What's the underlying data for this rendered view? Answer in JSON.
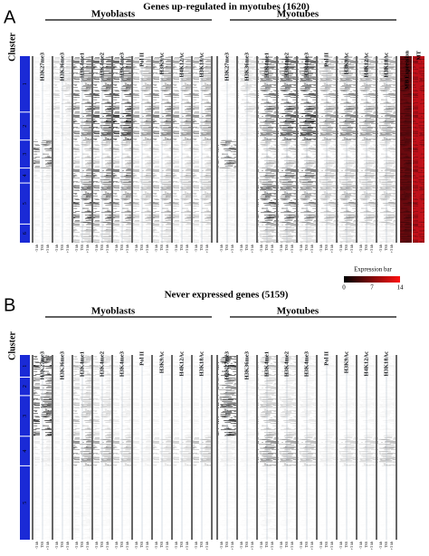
{
  "panels": [
    {
      "label": "A",
      "title": "Genes up-regulated in myotubes (1620)",
      "row_axis_label": "Cluster",
      "groups": [
        {
          "name": "Myoblasts",
          "columns": [
            "H3K27me3",
            "H3K36me3",
            "H3K4me1",
            "H3K4me2",
            "H3K4me3",
            "Pol II",
            "H3K9Ac",
            "H4K12Ac",
            "H3K18Ac"
          ]
        },
        {
          "name": "Myotubes",
          "columns": [
            "H3K27me3",
            "H3K36me3",
            "H3K4me1",
            "H3K4me2",
            "H3K4me3",
            "Pol II",
            "H3K9Ac",
            "H4K12Ac",
            "H3K18Ac"
          ]
        }
      ],
      "extra_columns": [
        "MB Expression",
        "MT"
      ],
      "clusters": [
        "1",
        "2",
        "3",
        "4",
        "5",
        "6"
      ],
      "column_axis": [
        "-3 kb",
        "TSS",
        "+3 kb"
      ]
    },
    {
      "label": "B",
      "title": "Never expressed genes (5159)",
      "row_axis_label": "Cluster",
      "groups": [
        {
          "name": "Myoblasts",
          "columns": [
            "H3K27me3",
            "H3K36me3",
            "H3K4me1",
            "H3K4me2",
            "H3K4me3",
            "Pol II",
            "H3K9Ac",
            "H4K12Ac",
            "H3K18Ac"
          ]
        },
        {
          "name": "Myotubes",
          "columns": [
            "H3K27me3",
            "H3K36me3",
            "H3K4me1",
            "H3K4me2",
            "H3K4me3",
            "Pol II",
            "H3K9Ac",
            "H4K12Ac",
            "H3K18Ac"
          ]
        }
      ],
      "clusters": [
        "1",
        "2",
        "3",
        "4",
        "5"
      ],
      "column_axis": [
        "-3 kb",
        "TSS",
        "+3 kb"
      ]
    }
  ],
  "expression_bar": {
    "title": "Expression bar",
    "ticks": [
      "0",
      "7",
      "14"
    ]
  }
}
